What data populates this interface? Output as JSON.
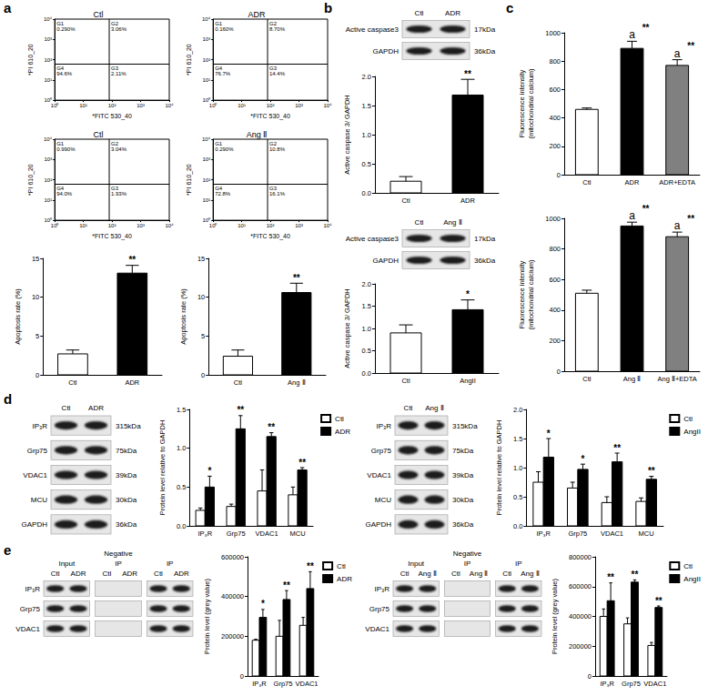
{
  "panel_labels": [
    "a",
    "b",
    "c",
    "d",
    "e"
  ],
  "chart_data": [
    {
      "type": "scatter",
      "title": "Ctl",
      "xlabel": "*FITC 530_40",
      "ylabel": "*PI 610_20",
      "log": true,
      "grid": false,
      "xlim": [
        1,
        10000
      ],
      "ylim": [
        1,
        10000
      ],
      "xticks": [
        {
          "value": 1,
          "label": "10⁰"
        },
        {
          "value": 10,
          "label": "10¹"
        },
        {
          "value": 100,
          "label": "10²"
        },
        {
          "value": 1000,
          "label": "10³"
        },
        {
          "value": 10000,
          "label": "10⁴"
        }
      ],
      "yticks": [
        {
          "value": 1,
          "label": "10⁰"
        },
        {
          "value": 10,
          "label": "10¹"
        },
        {
          "value": 100,
          "label": "10²"
        },
        {
          "value": 1000,
          "label": "10³"
        },
        {
          "value": 10000,
          "label": "10⁴"
        }
      ],
      "gate": {
        "x": 80,
        "y": 60
      },
      "quadrants": [
        {
          "name": "G1",
          "text": "0.290%"
        },
        {
          "name": "G2",
          "text": "3.06%"
        },
        {
          "name": "G3",
          "text": "2.11%"
        },
        {
          "name": "G4",
          "text": "94.6%"
        }
      ]
    },
    {
      "type": "scatter",
      "title": "ADR",
      "xlabel": "*FITC 530_40",
      "ylabel": "*PI 610_20",
      "log": true,
      "grid": false,
      "xlim": [
        1,
        10000
      ],
      "ylim": [
        1,
        10000
      ],
      "xticks": [
        {
          "value": 1,
          "label": "10⁰"
        },
        {
          "value": 10,
          "label": "10¹"
        },
        {
          "value": 100,
          "label": "10²"
        },
        {
          "value": 1000,
          "label": "10³"
        },
        {
          "value": 10000,
          "label": "10⁴"
        }
      ],
      "yticks": [
        {
          "value": 1,
          "label": "10⁰"
        },
        {
          "value": 10,
          "label": "10¹"
        },
        {
          "value": 100,
          "label": "10²"
        },
        {
          "value": 1000,
          "label": "10³"
        },
        {
          "value": 10000,
          "label": "10⁴"
        }
      ],
      "gate": {
        "x": 80,
        "y": 60
      },
      "quadrants": [
        {
          "name": "G1",
          "text": "0.160%"
        },
        {
          "name": "G2",
          "text": "8.70%"
        },
        {
          "name": "G3",
          "text": "14.4%"
        },
        {
          "name": "G4",
          "text": "76.7%"
        }
      ]
    },
    {
      "type": "scatter",
      "title": "Ctl",
      "xlabel": "*FITC 530_40",
      "ylabel": "*PI 610_20",
      "log": true,
      "grid": false,
      "xlim": [
        1,
        10000
      ],
      "ylim": [
        1,
        10000
      ],
      "xticks": [
        {
          "value": 1,
          "label": "10⁰"
        },
        {
          "value": 10,
          "label": "10¹"
        },
        {
          "value": 100,
          "label": "10²"
        },
        {
          "value": 1000,
          "label": "10³"
        },
        {
          "value": 10000,
          "label": "10⁴"
        }
      ],
      "yticks": [
        {
          "value": 1,
          "label": "10⁰"
        },
        {
          "value": 10,
          "label": "10¹"
        },
        {
          "value": 100,
          "label": "10²"
        },
        {
          "value": 1000,
          "label": "10³"
        },
        {
          "value": 10000,
          "label": "10⁴"
        }
      ],
      "gate": {
        "x": 80,
        "y": 60
      },
      "quadrants": [
        {
          "name": "G1",
          "text": "0.990%"
        },
        {
          "name": "G2",
          "text": "3.04%"
        },
        {
          "name": "G3",
          "text": "1.93%"
        },
        {
          "name": "G4",
          "text": "94.0%"
        }
      ]
    },
    {
      "type": "scatter",
      "title": "Ang Ⅱ",
      "xlabel": "*FITC 530_40",
      "ylabel": "*PI 610_20",
      "log": true,
      "grid": false,
      "xlim": [
        1,
        10000
      ],
      "ylim": [
        1,
        10000
      ],
      "xticks": [
        {
          "value": 1,
          "label": "10⁰"
        },
        {
          "value": 10,
          "label": "10¹"
        },
        {
          "value": 100,
          "label": "10²"
        },
        {
          "value": 1000,
          "label": "10³"
        },
        {
          "value": 10000,
          "label": "10⁴"
        }
      ],
      "yticks": [
        {
          "value": 1,
          "label": "10⁰"
        },
        {
          "value": 10,
          "label": "10¹"
        },
        {
          "value": 100,
          "label": "10²"
        },
        {
          "value": 1000,
          "label": "10³"
        },
        {
          "value": 10000,
          "label": "10⁴"
        }
      ],
      "gate": {
        "x": 80,
        "y": 60
      },
      "quadrants": [
        {
          "name": "G1",
          "text": "0.290%"
        },
        {
          "name": "G2",
          "text": "10.8%"
        },
        {
          "name": "G3",
          "text": "16.1%"
        },
        {
          "name": "G4",
          "text": "72.8%"
        }
      ]
    },
    {
      "type": "bar",
      "ylabel": "Apoptosis rate (%)",
      "grid": false,
      "categories": [
        "Ctl",
        "ADR"
      ],
      "values": [
        2.7,
        13.1
      ],
      "errors": [
        0.5,
        1.0
      ],
      "colors": [
        "#ffffff",
        "#000000"
      ],
      "significance": [
        null,
        "**"
      ],
      "ylim": [
        0,
        15
      ],
      "yticks": [
        0,
        5,
        10,
        15
      ]
    },
    {
      "type": "bar",
      "ylabel": "Apoptosis rate (%)",
      "grid": false,
      "categories": [
        "Ctl",
        "Ang Ⅱ"
      ],
      "values": [
        2.4,
        10.6
      ],
      "errors": [
        0.8,
        1.2
      ],
      "colors": [
        "#ffffff",
        "#000000"
      ],
      "significance": [
        null,
        "**"
      ],
      "ylim": [
        0,
        15
      ],
      "yticks": [
        0,
        5,
        10,
        15
      ]
    },
    {
      "type": "bar",
      "ylabel": "Active caspase 3/ GAPDH",
      "grid": false,
      "categories": [
        "Ctl",
        "ADR"
      ],
      "values": [
        0.2,
        1.68
      ],
      "errors": [
        0.08,
        0.27
      ],
      "colors": [
        "#ffffff",
        "#000000"
      ],
      "significance": [
        null,
        "**"
      ],
      "ylim": [
        0,
        2
      ],
      "yticks": [
        {
          "value": 0,
          "label": "0.0"
        },
        0.5,
        {
          "value": 1,
          "label": "1.0"
        },
        1.5,
        {
          "value": 2,
          "label": "2.0"
        }
      ]
    },
    {
      "type": "bar",
      "ylabel": "Active caspase 3/ GAPDH",
      "grid": false,
      "categories": [
        "Ctl",
        "AngII"
      ],
      "values": [
        0.9,
        1.42
      ],
      "errors": [
        0.18,
        0.22
      ],
      "colors": [
        "#ffffff",
        "#000000"
      ],
      "significance": [
        null,
        "*"
      ],
      "ylim": [
        0,
        2
      ],
      "yticks": [
        {
          "value": 0,
          "label": "0.0"
        },
        0.5,
        {
          "value": 1,
          "label": "1.0"
        },
        1.5,
        {
          "value": 2,
          "label": "2.0"
        }
      ]
    },
    {
      "type": "bar",
      "ylabel": "Fluorescence intensity\n(mitochondrial calcium)",
      "grid": false,
      "categories": [
        "Ctl",
        "ADR",
        "ADR+EDTA"
      ],
      "values": [
        460,
        890,
        770
      ],
      "errors": [
        10,
        50,
        40
      ],
      "colors": [
        "#ffffff",
        "#000000",
        "#808080"
      ],
      "significance": [
        null,
        "**",
        "**"
      ],
      "annotations": [
        null,
        "a",
        "a"
      ],
      "ylim": [
        0,
        1000
      ],
      "yticks": [
        0,
        200,
        400,
        600,
        800,
        1000
      ]
    },
    {
      "type": "bar",
      "ylabel": "Fluorescence intensity\n(mitochondrial calcium)",
      "grid": false,
      "categories": [
        "Ctl",
        "Ang Ⅱ",
        "Ang Ⅱ+EDTA"
      ],
      "values": [
        510,
        950,
        880
      ],
      "errors": [
        20,
        25,
        30
      ],
      "colors": [
        "#ffffff",
        "#000000",
        "#808080"
      ],
      "significance": [
        null,
        "**",
        "**"
      ],
      "annotations": [
        null,
        "a",
        "a"
      ],
      "ylim": [
        0,
        1000
      ],
      "yticks": [
        0,
        200,
        400,
        600,
        800,
        1000
      ]
    },
    {
      "type": "bar",
      "ylabel": "Protein level relative to GAPDH",
      "grid": false,
      "legend": "upper right",
      "categories": [
        "IP₃R",
        "Grp75",
        "VDAC1",
        "MCU"
      ],
      "series": [
        {
          "name": "Ctl",
          "color": "#ffffff",
          "values": [
            0.2,
            0.25,
            0.45,
            0.4
          ],
          "errors": [
            0.03,
            0.03,
            0.27,
            0.1
          ]
        },
        {
          "name": "ADR",
          "color": "#000000",
          "values": [
            0.5,
            1.25,
            1.15,
            0.72
          ],
          "errors": [
            0.14,
            0.17,
            0.05,
            0.03
          ],
          "significance": [
            "*",
            "**",
            "**",
            "**"
          ]
        }
      ],
      "ylim": [
        0,
        1.5
      ],
      "yticks": [
        {
          "value": 0,
          "label": "0.0"
        },
        0.5,
        {
          "value": 1,
          "label": "1.0"
        },
        1.5
      ]
    },
    {
      "type": "bar",
      "ylabel": "Protein level relative to GAPDH",
      "grid": false,
      "legend": "upper right",
      "categories": [
        "IP₃R",
        "Grp75",
        "VDAC1",
        "MCU"
      ],
      "series": [
        {
          "name": "Ctl",
          "color": "#ffffff",
          "values": [
            0.75,
            0.65,
            0.4,
            0.42
          ],
          "errors": [
            0.18,
            0.1,
            0.1,
            0.06
          ]
        },
        {
          "name": "AngII",
          "color": "#000000",
          "values": [
            1.18,
            0.97,
            1.1,
            0.8
          ],
          "errors": [
            0.32,
            0.09,
            0.15,
            0.05
          ],
          "significance": [
            "*",
            "*",
            "**",
            "**"
          ]
        }
      ],
      "ylim": [
        0,
        2
      ],
      "yticks": [
        {
          "value": 0,
          "label": "0.0"
        },
        0.5,
        {
          "value": 1,
          "label": "1.0"
        },
        1.5,
        {
          "value": 2,
          "label": "2.0"
        }
      ]
    },
    {
      "type": "bar",
      "ylabel": "Protein level (grey value)",
      "grid": false,
      "legend": "upper right",
      "categories": [
        "IP₃R",
        "Grp75",
        "VDAC1"
      ],
      "series": [
        {
          "name": "Ctl",
          "color": "#ffffff",
          "values": [
            180000,
            200000,
            255000
          ],
          "errors": [
            5000,
            80000,
            40000
          ]
        },
        {
          "name": "ADR",
          "color": "#000000",
          "values": [
            295000,
            385000,
            440000
          ],
          "errors": [
            40000,
            45000,
            85000
          ],
          "significance": [
            "*",
            "**",
            "**"
          ]
        }
      ],
      "ylim": [
        0,
        600000
      ],
      "yticks": [
        0,
        200000,
        400000,
        600000
      ]
    },
    {
      "type": "bar",
      "ylabel": "Protein level (grey value)",
      "grid": false,
      "legend": "upper right",
      "categories": [
        "IP₃R",
        "Grp75",
        "VDAC1"
      ],
      "series": [
        {
          "name": "Ctl",
          "color": "#ffffff",
          "values": [
            400000,
            350000,
            205000
          ],
          "errors": [
            50000,
            40000,
            20000
          ]
        },
        {
          "name": "AngII",
          "color": "#000000",
          "values": [
            505000,
            630000,
            460000
          ],
          "errors": [
            120000,
            15000,
            10000
          ],
          "significance": [
            "**",
            "**",
            "**"
          ]
        }
      ],
      "ylim": [
        0,
        800000
      ],
      "yticks": [
        0,
        200000,
        400000,
        600000,
        800000
      ]
    }
  ],
  "blots": [
    {
      "lanes": [
        "Ctl",
        "ADR"
      ],
      "rows": [
        {
          "name": "Active caspase3",
          "size": "17kDa"
        },
        {
          "name": "GAPDH",
          "size": "36kDa"
        }
      ]
    },
    {
      "lanes": [
        "Ctl",
        "Ang Ⅱ"
      ],
      "rows": [
        {
          "name": "Active caspase3",
          "size": "17kDa"
        },
        {
          "name": "GAPDH",
          "size": "36kDa"
        }
      ]
    },
    {
      "lanes": [
        "Ctl",
        "ADR"
      ],
      "rows": [
        {
          "name": "IP₃R",
          "size": "315kDa"
        },
        {
          "name": "Grp75",
          "size": "75kDa"
        },
        {
          "name": "VDAC1",
          "size": "39kDa"
        },
        {
          "name": "MCU",
          "size": "30kDa"
        },
        {
          "name": "GAPDH",
          "size": "36kDa"
        }
      ]
    },
    {
      "lanes": [
        "Ctl",
        "Ang Ⅱ"
      ],
      "rows": [
        {
          "name": "IP₃R",
          "size": "315kDa"
        },
        {
          "name": "Grp75",
          "size": "75kDa"
        },
        {
          "name": "VDAC1",
          "size": "39kDa"
        },
        {
          "name": "MCU",
          "size": "30kDa"
        },
        {
          "name": "GAPDH",
          "size": "36kDa"
        }
      ]
    },
    {
      "groups": [
        {
          "name": "Input",
          "lanes": [
            "Ctl",
            "ADR"
          ],
          "bands": true
        },
        {
          "header": "Negative",
          "name": "IP",
          "lanes": [
            "Ctl",
            "ADR"
          ],
          "bands": false
        },
        {
          "name": "IP",
          "lanes": [
            "Ctl",
            "ADR"
          ],
          "bands": true
        }
      ],
      "rows": [
        {
          "name": "IP₃R"
        },
        {
          "name": "Grp75"
        },
        {
          "name": "VDAC1"
        }
      ]
    },
    {
      "groups": [
        {
          "name": "Input",
          "lanes": [
            "Ctl",
            "Ang Ⅱ"
          ],
          "bands": true
        },
        {
          "header": "Negative",
          "name": "IP",
          "lanes": [
            "Ctl",
            "Ang Ⅱ"
          ],
          "bands": false
        },
        {
          "name": "IP",
          "lanes": [
            "Ctl",
            "Ang Ⅱ"
          ],
          "bands": true
        }
      ],
      "rows": [
        {
          "name": "IP₃R"
        },
        {
          "name": "Grp75"
        },
        {
          "name": "VDAC1"
        }
      ]
    }
  ]
}
